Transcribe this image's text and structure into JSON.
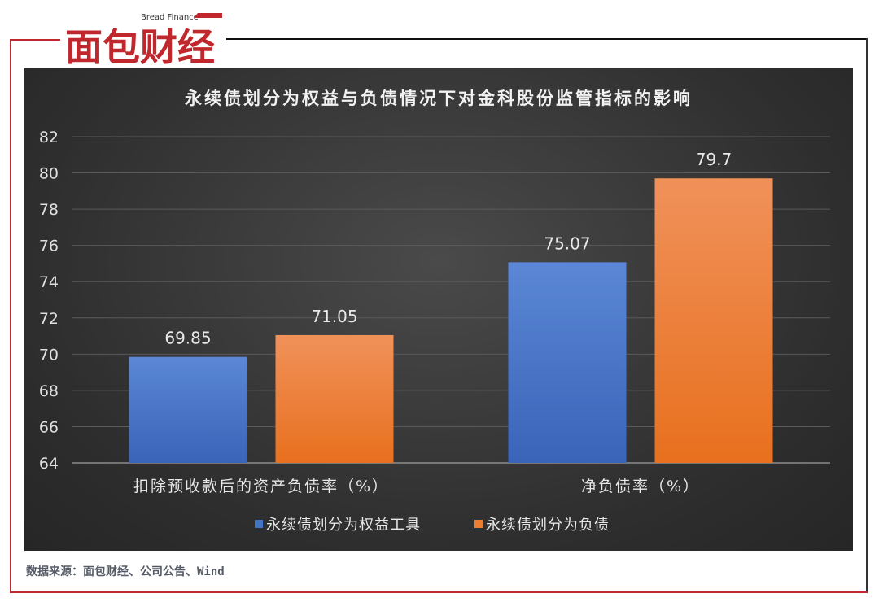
{
  "brand": {
    "name": "面包财经",
    "tagline": "Bread Finance"
  },
  "source": "数据来源：面包财经、公司公告、Wind",
  "chart_data": {
    "type": "bar",
    "title": "永续债划分为权益与负债情况下对金科股份监管指标的影响",
    "categories": [
      "扣除预收款后的资产负债率（%）",
      "净负债率（%）"
    ],
    "series": [
      {
        "name": "永续债划分为权益工具",
        "values": [
          69.85,
          75.07
        ],
        "color": "#4472c4"
      },
      {
        "name": "永续债划分为负债",
        "values": [
          71.05,
          79.7
        ],
        "color": "#ed7d31"
      }
    ],
    "data_labels": [
      [
        "69.85",
        "75.07"
      ],
      [
        "71.05",
        "79.7"
      ]
    ],
    "ylim": [
      64,
      82
    ],
    "yticks": [
      64,
      66,
      68,
      70,
      72,
      74,
      76,
      78,
      80,
      82
    ],
    "grid": true,
    "legend": "bottom"
  }
}
